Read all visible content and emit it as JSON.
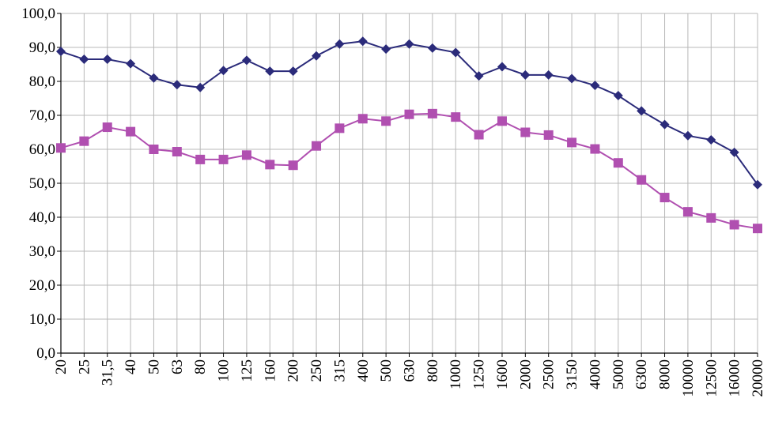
{
  "chart_data": {
    "type": "line",
    "title": "",
    "xlabel": "",
    "ylabel": "",
    "ylim": [
      0,
      100
    ],
    "y_tick_step": 10,
    "y_tick_labels": [
      "0,0",
      "10,0",
      "20,0",
      "30,0",
      "40,0",
      "50,0",
      "60,0",
      "70,0",
      "80,0",
      "90,0",
      "100,0"
    ],
    "grid": true,
    "legend": "none",
    "categories": [
      "20",
      "25",
      "31,5",
      "40",
      "50",
      "63",
      "80",
      "100",
      "125",
      "160",
      "200",
      "250",
      "315",
      "400",
      "500",
      "630",
      "800",
      "1000",
      "1250",
      "1600",
      "2000",
      "2500",
      "3150",
      "4000",
      "5000",
      "6300",
      "8000",
      "10000",
      "12500",
      "16000",
      "20000"
    ],
    "series": [
      {
        "marker": "diamond",
        "color": "#2b2b7a",
        "values": [
          88.8,
          86.5,
          86.5,
          85.2,
          81.0,
          79.0,
          78.2,
          83.2,
          86.2,
          83.0,
          83.0,
          87.5,
          91.0,
          91.8,
          89.5,
          91.0,
          89.8,
          88.5,
          81.6,
          84.3,
          81.9,
          81.9,
          80.8,
          78.8,
          75.8,
          71.3,
          67.3,
          64.0,
          62.8,
          59.1,
          49.6
        ]
      },
      {
        "marker": "square",
        "color": "#b04fb0",
        "values": [
          60.4,
          62.4,
          66.5,
          65.2,
          60.0,
          59.3,
          57.0,
          57.0,
          58.3,
          55.5,
          55.3,
          61.0,
          66.2,
          69.0,
          68.3,
          70.3,
          70.5,
          69.5,
          64.3,
          68.3,
          65.0,
          64.2,
          62.0,
          60.1,
          56.0,
          51.0,
          45.8,
          41.6,
          39.8,
          37.8,
          36.7
        ]
      }
    ]
  }
}
